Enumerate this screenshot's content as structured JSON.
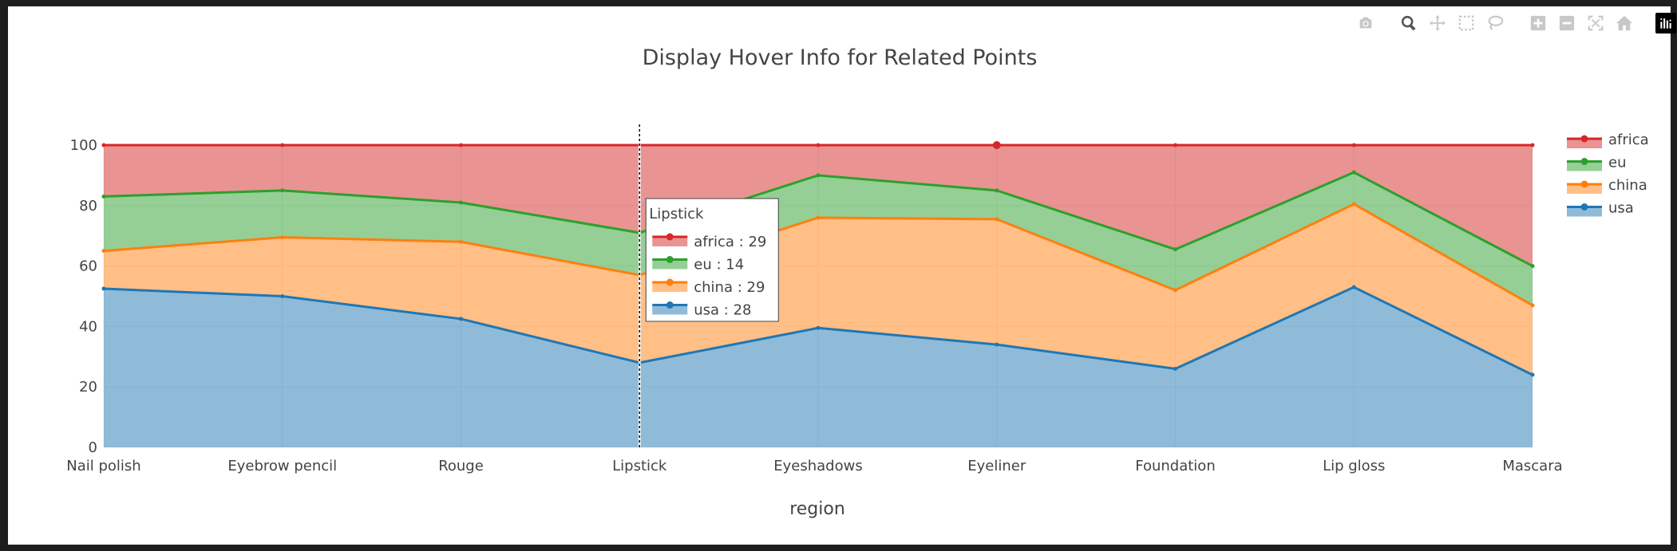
{
  "modebar": {
    "buttons": [
      "camera-icon",
      "zoom-icon",
      "pan-icon",
      "box-select-icon",
      "lasso-icon",
      "zoom-in-icon",
      "zoom-out-icon",
      "autoscale-icon",
      "reset-axes-icon"
    ],
    "logo": "plotly-logo-icon"
  },
  "chart_data": {
    "type": "area",
    "stacked": true,
    "normalization": "percent",
    "title": "Display Hover Info for Related Points",
    "xlabel": "region",
    "ylabel": "",
    "ylim": [
      0,
      100
    ],
    "yticks": [
      0,
      20,
      40,
      60,
      80,
      100
    ],
    "categories": [
      "Nail polish",
      "Eyebrow pencil",
      "Rouge",
      "Lipstick",
      "Eyeshadows",
      "Eyeliner",
      "Foundation",
      "Lip gloss",
      "Mascara"
    ],
    "series": [
      {
        "name": "usa",
        "color": "#1f77b4",
        "fill": "rgba(31,119,180,0.5)",
        "values": [
          52.5,
          50,
          42.5,
          28,
          39.5,
          34,
          26,
          53,
          24
        ]
      },
      {
        "name": "china",
        "color": "#ff7f0e",
        "fill": "rgba(255,127,14,0.5)",
        "values": [
          12.5,
          19.5,
          25.5,
          29,
          36.5,
          41.5,
          26,
          27.5,
          23
        ]
      },
      {
        "name": "eu",
        "color": "#2ca02c",
        "fill": "rgba(44,160,44,0.5)",
        "values": [
          18,
          15.5,
          13,
          14,
          14,
          9.5,
          13.5,
          10.5,
          13
        ]
      },
      {
        "name": "africa",
        "color": "#d62728",
        "fill": "rgba(214,39,40,0.5)",
        "values": [
          17,
          15,
          19,
          29,
          10,
          15,
          34.5,
          9,
          40
        ]
      }
    ],
    "legend_position": "right",
    "hover": {
      "category": "Lipstick",
      "items": [
        {
          "name": "africa",
          "text": "africa : 29"
        },
        {
          "name": "eu",
          "text": "eu : 14"
        },
        {
          "name": "china",
          "text": "china : 29"
        },
        {
          "name": "usa",
          "text": "usa : 28"
        }
      ]
    }
  }
}
